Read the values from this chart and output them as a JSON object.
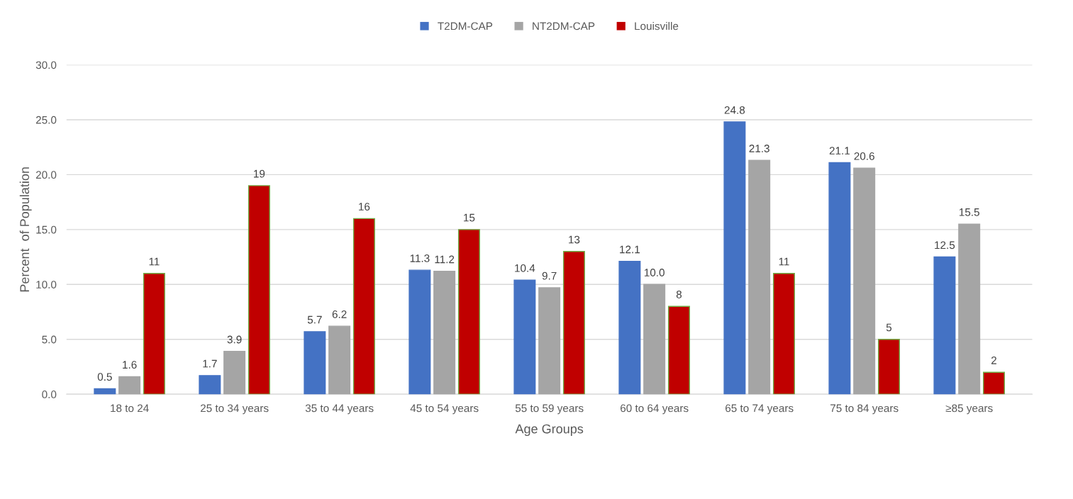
{
  "chart_data": {
    "type": "bar",
    "xlabel": "Age Groups",
    "ylabel": "Percent  of Population",
    "categories": [
      "18 to 24",
      "25 to 34 years",
      "35 to 44 years",
      "45 to 54 years",
      "55 to 59 years",
      "60 to 64 years",
      "65 to 74 years",
      "75 to 84 years",
      "≥85 years"
    ],
    "series": [
      {
        "name": "T2DM-CAP",
        "color": "#4472c4",
        "values": [
          0.5,
          1.7,
          5.7,
          11.3,
          10.4,
          12.1,
          24.8,
          21.1,
          12.5
        ],
        "value_labels": [
          "0.5",
          "1.7",
          "5.7",
          "11.3",
          "10.4",
          "12.1",
          "24.8",
          "21.1",
          "12.5"
        ]
      },
      {
        "name": "NT2DM-CAP",
        "color": "#a5a5a5",
        "values": [
          1.6,
          3.9,
          6.2,
          11.2,
          9.7,
          10.0,
          21.3,
          20.6,
          15.5
        ],
        "value_labels": [
          "1.6",
          "3.9",
          "6.2",
          "11.2",
          "9.7",
          "10.0",
          "21.3",
          "20.6",
          "15.5"
        ]
      },
      {
        "name": "Louisville",
        "color": "#c00000",
        "values": [
          11,
          19,
          16,
          15,
          13,
          8,
          11,
          5,
          2
        ],
        "value_labels": [
          "11",
          "19",
          "16",
          "15",
          "13",
          "8",
          "11",
          "5",
          "2"
        ]
      }
    ],
    "ylim": [
      0,
      30
    ],
    "yticks": [
      {
        "value": 0,
        "label": "0.0"
      },
      {
        "value": 5,
        "label": "5.0"
      },
      {
        "value": 10,
        "label": "10.0"
      },
      {
        "value": 15,
        "label": "15.0"
      },
      {
        "value": 20,
        "label": "20.0"
      },
      {
        "value": 25,
        "label": "25.0"
      },
      {
        "value": 30,
        "label": "30.0"
      }
    ],
    "grid": "y",
    "legend": "top"
  }
}
